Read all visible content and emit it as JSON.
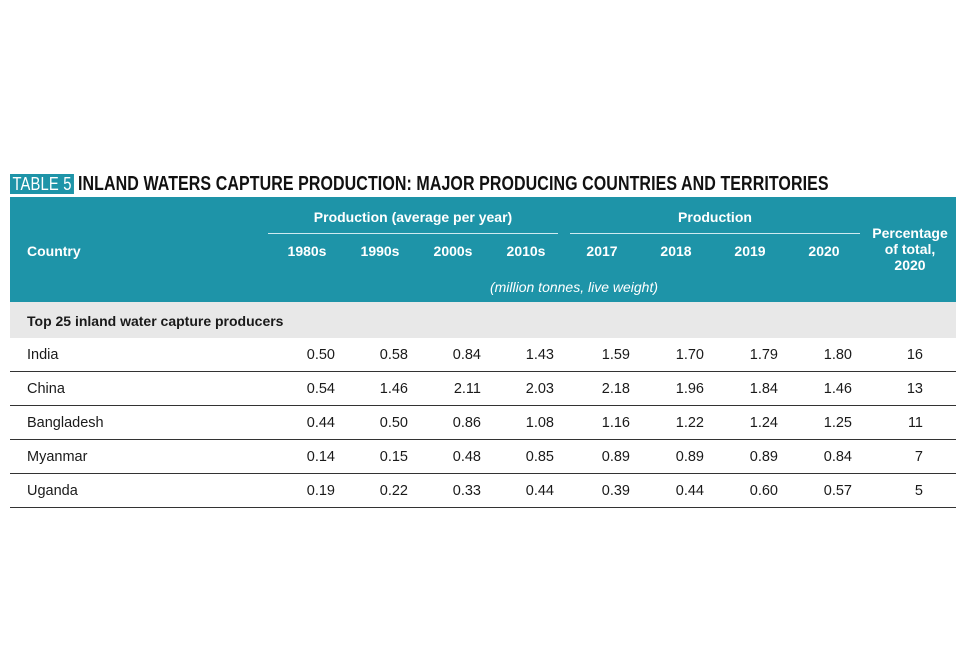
{
  "title": {
    "tag": "TABLE 5",
    "text": "INLAND WATERS CAPTURE PRODUCTION: MAJOR PRODUCING COUNTRIES AND TERRITORIES"
  },
  "header": {
    "country": "Country",
    "group_avg": "Production (average per year)",
    "group_prod": "Production",
    "percentage": [
      "Percentage",
      "of total,",
      "2020"
    ],
    "columns": [
      "1980s",
      "1990s",
      "2000s",
      "2010s",
      "2017",
      "2018",
      "2019",
      "2020"
    ],
    "unit_note": "(million tonnes, live weight)"
  },
  "section": "Top 25 inland water capture producers",
  "rows": [
    {
      "country": "India",
      "values": [
        "0.50",
        "0.58",
        "0.84",
        "1.43",
        "1.59",
        "1.70",
        "1.79",
        "1.80"
      ],
      "pct": "16"
    },
    {
      "country": "China",
      "values": [
        "0.54",
        "1.46",
        "2.11",
        "2.03",
        "2.18",
        "1.96",
        "1.84",
        "1.46"
      ],
      "pct": "13"
    },
    {
      "country": "Bangladesh",
      "values": [
        "0.44",
        "0.50",
        "0.86",
        "1.08",
        "1.16",
        "1.22",
        "1.24",
        "1.25"
      ],
      "pct": "11"
    },
    {
      "country": "Myanmar",
      "values": [
        "0.14",
        "0.15",
        "0.48",
        "0.85",
        "0.89",
        "0.89",
        "0.89",
        "0.84"
      ],
      "pct": "7"
    },
    {
      "country": "Uganda",
      "values": [
        "0.19",
        "0.22",
        "0.33",
        "0.44",
        "0.39",
        "0.44",
        "0.60",
        "0.57"
      ],
      "pct": "5"
    }
  ],
  "colors": {
    "header_band": "#1e94a8",
    "section_band": "#e8e8e8"
  }
}
